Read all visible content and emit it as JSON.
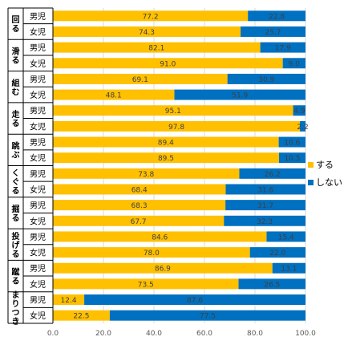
{
  "chart_data": {
    "type": "bar",
    "stacked": true,
    "orientation": "horizontal",
    "colors": {
      "suru": "#FFC000",
      "shinai": "#0070C0"
    },
    "xlim": [
      0,
      100
    ],
    "xticks": [
      "0.0",
      "20.0",
      "40.0",
      "60.0",
      "80.0",
      "100.0"
    ],
    "gridlines": true,
    "legend_position": "right",
    "legend": [
      {
        "key": "suru",
        "label": "する"
      },
      {
        "key": "shinai",
        "label": "しない"
      }
    ],
    "groups": [
      {
        "label": "回る",
        "rows": [
          {
            "gender": "男児",
            "suru": 77.2,
            "shinai": 22.8
          },
          {
            "gender": "女児",
            "suru": 74.3,
            "shinai": 25.7
          }
        ]
      },
      {
        "label": "滑る",
        "rows": [
          {
            "gender": "男児",
            "suru": 82.1,
            "shinai": 17.9
          },
          {
            "gender": "女児",
            "suru": 91.0,
            "shinai": 9.0
          }
        ]
      },
      {
        "label": "組む",
        "rows": [
          {
            "gender": "男児",
            "suru": 69.1,
            "shinai": 30.9
          },
          {
            "gender": "女児",
            "suru": 48.1,
            "shinai": 51.9
          }
        ]
      },
      {
        "label": "走る",
        "rows": [
          {
            "gender": "男児",
            "suru": 95.1,
            "shinai": 4.9
          },
          {
            "gender": "女児",
            "suru": 97.8,
            "shinai": 2.2
          }
        ]
      },
      {
        "label": "跳ぶ",
        "rows": [
          {
            "gender": "男児",
            "suru": 89.4,
            "shinai": 10.6
          },
          {
            "gender": "女児",
            "suru": 89.5,
            "shinai": 10.5
          }
        ]
      },
      {
        "label": "くぐる",
        "rows": [
          {
            "gender": "男児",
            "suru": 73.8,
            "shinai": 26.2
          },
          {
            "gender": "女児",
            "suru": 68.4,
            "shinai": 31.6
          }
        ]
      },
      {
        "label": "掘る",
        "rows": [
          {
            "gender": "男児",
            "suru": 68.3,
            "shinai": 31.7
          },
          {
            "gender": "女児",
            "suru": 67.7,
            "shinai": 32.3
          }
        ]
      },
      {
        "label": "投げる",
        "rows": [
          {
            "gender": "男児",
            "suru": 84.6,
            "shinai": 15.4
          },
          {
            "gender": "女児",
            "suru": 78.0,
            "shinai": 22.0
          }
        ]
      },
      {
        "label": "蹴る",
        "rows": [
          {
            "gender": "男児",
            "suru": 86.9,
            "shinai": 13.1
          },
          {
            "gender": "女児",
            "suru": 73.5,
            "shinai": 26.5
          }
        ]
      },
      {
        "label": "まりつき",
        "rows": [
          {
            "gender": "男児",
            "suru": 12.4,
            "shinai": 87.6
          },
          {
            "gender": "女児",
            "suru": 22.5,
            "shinai": 77.5
          }
        ]
      }
    ]
  }
}
